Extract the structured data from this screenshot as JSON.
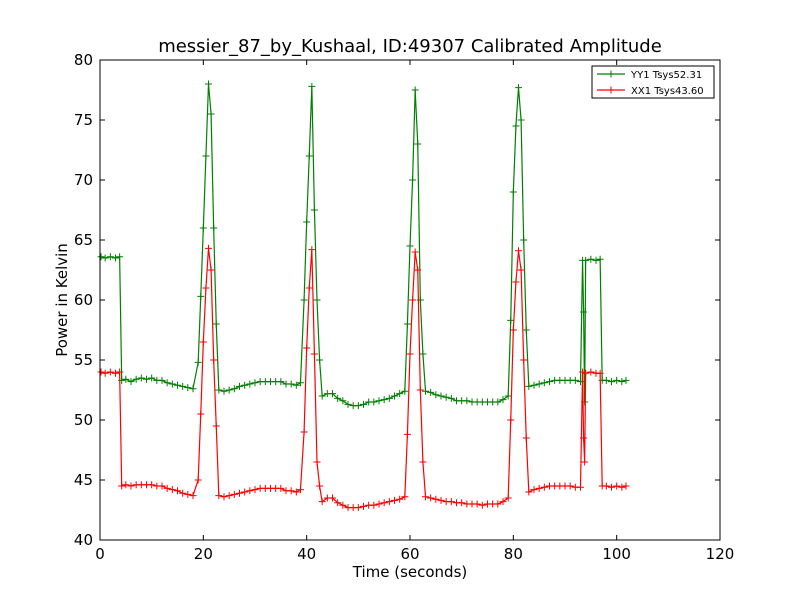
{
  "chart_data": {
    "type": "line",
    "title": "messier_87_by_Kushaal, ID:49307 Calibrated Amplitude",
    "xlabel": "Time (seconds)",
    "ylabel": "Power in Kelvin",
    "xlim": [
      0,
      120
    ],
    "ylim": [
      40,
      80
    ],
    "xticks": [
      "0",
      "20",
      "40",
      "60",
      "80",
      "100",
      "120"
    ],
    "yticks": [
      "40",
      "45",
      "50",
      "55",
      "60",
      "65",
      "70",
      "75",
      "80"
    ],
    "grid": false,
    "legend_position": "top-right",
    "marker": "plus",
    "series": [
      {
        "name": "YY1 Tsys52.31",
        "color": "#008000",
        "points": [
          [
            0.2,
            63.6
          ],
          [
            1,
            63.5
          ],
          [
            2,
            63.6
          ],
          [
            3,
            63.5
          ],
          [
            3.8,
            63.6
          ],
          [
            4.2,
            53.3
          ],
          [
            5,
            53.4
          ],
          [
            6,
            53.2
          ],
          [
            7,
            53.4
          ],
          [
            8,
            53.5
          ],
          [
            9,
            53.4
          ],
          [
            10,
            53.5
          ],
          [
            11,
            53.3
          ],
          [
            12,
            53.3
          ],
          [
            13,
            53.1
          ],
          [
            14,
            53.0
          ],
          [
            15,
            52.9
          ],
          [
            16,
            52.8
          ],
          [
            17,
            52.7
          ],
          [
            18,
            52.6
          ],
          [
            19,
            54.8
          ],
          [
            19.5,
            60.3
          ],
          [
            20,
            66.0
          ],
          [
            20.5,
            72.0
          ],
          [
            21,
            78.0
          ],
          [
            21.5,
            75.5
          ],
          [
            22,
            66.0
          ],
          [
            22.5,
            58.0
          ],
          [
            23,
            52.5
          ],
          [
            24,
            52.4
          ],
          [
            25,
            52.5
          ],
          [
            26,
            52.6
          ],
          [
            27,
            52.8
          ],
          [
            28,
            52.9
          ],
          [
            29,
            53.0
          ],
          [
            30,
            53.1
          ],
          [
            31,
            53.2
          ],
          [
            32,
            53.2
          ],
          [
            33,
            53.2
          ],
          [
            34,
            53.2
          ],
          [
            35,
            53.2
          ],
          [
            36,
            53.0
          ],
          [
            37,
            53.0
          ],
          [
            38,
            52.9
          ],
          [
            38.8,
            53.1
          ],
          [
            39.5,
            60.0
          ],
          [
            40,
            66.5
          ],
          [
            40.5,
            72.0
          ],
          [
            41,
            77.8
          ],
          [
            41.5,
            67.5
          ],
          [
            42,
            60.0
          ],
          [
            42.5,
            55.0
          ],
          [
            43,
            52.0
          ],
          [
            44,
            52.2
          ],
          [
            45,
            52.2
          ],
          [
            46,
            51.8
          ],
          [
            47,
            51.6
          ],
          [
            48,
            51.3
          ],
          [
            49,
            51.2
          ],
          [
            50,
            51.2
          ],
          [
            51,
            51.3
          ],
          [
            52,
            51.5
          ],
          [
            53,
            51.5
          ],
          [
            54,
            51.6
          ],
          [
            55,
            51.7
          ],
          [
            56,
            51.8
          ],
          [
            57,
            52.0
          ],
          [
            58,
            52.2
          ],
          [
            59,
            52.4
          ],
          [
            59.5,
            58.0
          ],
          [
            60,
            64.5
          ],
          [
            60.5,
            70.0
          ],
          [
            61,
            77.5
          ],
          [
            61.5,
            73.0
          ],
          [
            62,
            60.0
          ],
          [
            62.5,
            55.5
          ],
          [
            63,
            52.4
          ],
          [
            64,
            52.3
          ],
          [
            65,
            52.1
          ],
          [
            66,
            52.0
          ],
          [
            67,
            51.9
          ],
          [
            68,
            51.8
          ],
          [
            69,
            51.6
          ],
          [
            70,
            51.6
          ],
          [
            71,
            51.6
          ],
          [
            72,
            51.5
          ],
          [
            73,
            51.5
          ],
          [
            74,
            51.5
          ],
          [
            75,
            51.5
          ],
          [
            76,
            51.5
          ],
          [
            77,
            51.5
          ],
          [
            78,
            51.7
          ],
          [
            79,
            52.0
          ],
          [
            79.5,
            58.3
          ],
          [
            80,
            69.0
          ],
          [
            80.5,
            74.5
          ],
          [
            81,
            77.7
          ],
          [
            81.5,
            75.0
          ],
          [
            82,
            65.0
          ],
          [
            82.5,
            57.5
          ],
          [
            83,
            52.8
          ],
          [
            84,
            52.9
          ],
          [
            85,
            53.0
          ],
          [
            86,
            53.1
          ],
          [
            87,
            53.2
          ],
          [
            88,
            53.3
          ],
          [
            89,
            53.3
          ],
          [
            90,
            53.3
          ],
          [
            91,
            53.3
          ],
          [
            92,
            53.3
          ],
          [
            93,
            53.2
          ],
          [
            93.4,
            63.3
          ],
          [
            93.6,
            59.0
          ],
          [
            93.8,
            51.5
          ],
          [
            94,
            63.3
          ],
          [
            95,
            63.4
          ],
          [
            96,
            63.3
          ],
          [
            96.8,
            63.4
          ],
          [
            97.2,
            53.3
          ],
          [
            98,
            53.3
          ],
          [
            99,
            53.2
          ],
          [
            100,
            53.3
          ],
          [
            101,
            53.2
          ],
          [
            101.8,
            53.3
          ]
        ]
      },
      {
        "name": "XX1 Tsys43.60",
        "color": "#ff0000",
        "points": [
          [
            0.2,
            54.0
          ],
          [
            1,
            53.9
          ],
          [
            2,
            54.0
          ],
          [
            3,
            53.9
          ],
          [
            3.8,
            54.0
          ],
          [
            4.2,
            44.5
          ],
          [
            5,
            44.6
          ],
          [
            6,
            44.5
          ],
          [
            7,
            44.6
          ],
          [
            8,
            44.6
          ],
          [
            9,
            44.6
          ],
          [
            10,
            44.6
          ],
          [
            11,
            44.5
          ],
          [
            12,
            44.5
          ],
          [
            13,
            44.3
          ],
          [
            14,
            44.2
          ],
          [
            15,
            44.1
          ],
          [
            16,
            43.9
          ],
          [
            17,
            43.8
          ],
          [
            18,
            43.7
          ],
          [
            19,
            45.0
          ],
          [
            19.5,
            50.5
          ],
          [
            20,
            56.5
          ],
          [
            20.5,
            61.0
          ],
          [
            21,
            64.3
          ],
          [
            21.5,
            62.5
          ],
          [
            22,
            55.0
          ],
          [
            22.5,
            49.5
          ],
          [
            23,
            43.7
          ],
          [
            24,
            43.6
          ],
          [
            25,
            43.7
          ],
          [
            26,
            43.8
          ],
          [
            27,
            43.9
          ],
          [
            28,
            44.0
          ],
          [
            29,
            44.1
          ],
          [
            30,
            44.2
          ],
          [
            31,
            44.3
          ],
          [
            32,
            44.3
          ],
          [
            33,
            44.3
          ],
          [
            34,
            44.3
          ],
          [
            35,
            44.3
          ],
          [
            36,
            44.1
          ],
          [
            37,
            44.1
          ],
          [
            38,
            44.0
          ],
          [
            38.8,
            44.2
          ],
          [
            39.5,
            49.0
          ],
          [
            40,
            56.0
          ],
          [
            40.5,
            61.0
          ],
          [
            41,
            64.2
          ],
          [
            41.5,
            55.5
          ],
          [
            42,
            46.5
          ],
          [
            42.5,
            44.5
          ],
          [
            43,
            43.2
          ],
          [
            44,
            43.5
          ],
          [
            45,
            43.5
          ],
          [
            46,
            43.1
          ],
          [
            47,
            42.9
          ],
          [
            48,
            42.7
          ],
          [
            49,
            42.7
          ],
          [
            50,
            42.7
          ],
          [
            51,
            42.8
          ],
          [
            52,
            42.9
          ],
          [
            53,
            42.9
          ],
          [
            54,
            43.0
          ],
          [
            55,
            43.1
          ],
          [
            56,
            43.2
          ],
          [
            57,
            43.3
          ],
          [
            58,
            43.4
          ],
          [
            59,
            43.6
          ],
          [
            59.5,
            48.8
          ],
          [
            60,
            55.5
          ],
          [
            60.5,
            60.0
          ],
          [
            61,
            64.0
          ],
          [
            61.5,
            62.5
          ],
          [
            62,
            52.5
          ],
          [
            62.5,
            46.5
          ],
          [
            63,
            43.6
          ],
          [
            64,
            43.5
          ],
          [
            65,
            43.4
          ],
          [
            66,
            43.3
          ],
          [
            67,
            43.2
          ],
          [
            68,
            43.2
          ],
          [
            69,
            43.1
          ],
          [
            70,
            43.1
          ],
          [
            71,
            43.0
          ],
          [
            72,
            43.0
          ],
          [
            73,
            43.0
          ],
          [
            74,
            42.9
          ],
          [
            75,
            43.0
          ],
          [
            76,
            43.0
          ],
          [
            77,
            43.0
          ],
          [
            78,
            43.2
          ],
          [
            79,
            43.5
          ],
          [
            79.5,
            50.0
          ],
          [
            80,
            57.5
          ],
          [
            80.5,
            61.5
          ],
          [
            81,
            64.1
          ],
          [
            81.5,
            62.5
          ],
          [
            82,
            55.0
          ],
          [
            82.5,
            48.5
          ],
          [
            83,
            44.0
          ],
          [
            84,
            44.2
          ],
          [
            85,
            44.3
          ],
          [
            86,
            44.4
          ],
          [
            87,
            44.5
          ],
          [
            88,
            44.5
          ],
          [
            89,
            44.5
          ],
          [
            90,
            44.5
          ],
          [
            91,
            44.5
          ],
          [
            92,
            44.4
          ],
          [
            93,
            44.4
          ],
          [
            93.4,
            54.0
          ],
          [
            93.6,
            48.5
          ],
          [
            93.8,
            46.5
          ],
          [
            94,
            53.9
          ],
          [
            95,
            54.0
          ],
          [
            96,
            53.9
          ],
          [
            96.8,
            53.9
          ],
          [
            97.2,
            44.5
          ],
          [
            98,
            44.5
          ],
          [
            99,
            44.4
          ],
          [
            100,
            44.5
          ],
          [
            101,
            44.4
          ],
          [
            101.8,
            44.5
          ]
        ]
      }
    ]
  }
}
